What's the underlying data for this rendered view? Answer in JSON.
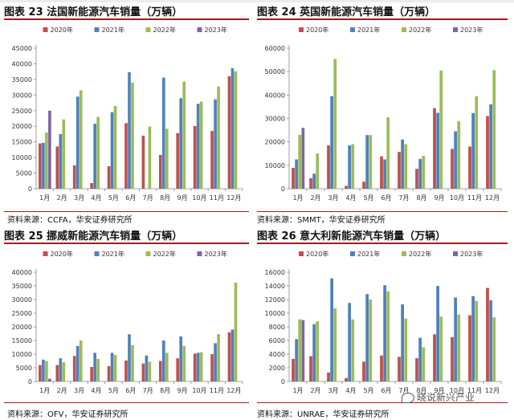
{
  "watermark": "晓说新兴产业",
  "chart_data": [
    {
      "type": "bar",
      "title": "图表 23 法国新能源汽车销量（万辆）",
      "source": "资料来源：CCFA，华安证券研究所",
      "categories": [
        "1月",
        "2月",
        "3月",
        "4月",
        "5月",
        "6月",
        "7月",
        "8月",
        "9月",
        "10月",
        "11月",
        "12月"
      ],
      "ylim": [
        0,
        45000
      ],
      "yticks": [
        0,
        5000,
        10000,
        15000,
        20000,
        25000,
        30000,
        35000,
        40000,
        45000
      ],
      "series": [
        {
          "name": "2020年",
          "color": "#c0504d",
          "values": [
            14500,
            13500,
            7500,
            1800,
            7200,
            21000,
            17000,
            10800,
            17800,
            20100,
            18500,
            36000
          ]
        },
        {
          "name": "2021年",
          "color": "#4f81bd",
          "values": [
            14700,
            17500,
            29500,
            20800,
            24500,
            37300,
            null,
            35600,
            29000,
            27200,
            28600,
            38600
          ]
        },
        {
          "name": "2022年",
          "color": "#9bbb59",
          "values": [
            18000,
            22200,
            31500,
            23000,
            26500,
            34000,
            19900,
            19200,
            34300,
            27900,
            32700,
            37600
          ]
        },
        {
          "name": "2023年",
          "color": "#8064a2",
          "values": [
            25000,
            null,
            null,
            null,
            null,
            null,
            null,
            null,
            null,
            null,
            null,
            null
          ]
        }
      ]
    },
    {
      "type": "bar",
      "title": "图表 24 英国新能源汽车销量（万辆）",
      "source": "资料来源：SMMT，华安证券研究所",
      "categories": [
        "1月",
        "2月",
        "3月",
        "4月",
        "5月",
        "6月",
        "7月",
        "8月",
        "9月",
        "10月",
        "11月",
        "12月"
      ],
      "ylim": [
        0,
        60000
      ],
      "yticks": [
        0,
        10000,
        20000,
        30000,
        40000,
        50000,
        60000
      ],
      "series": [
        {
          "name": "2020年",
          "color": "#c0504d",
          "values": [
            8900,
            4500,
            18500,
            1200,
            3000,
            13800,
            15700,
            8500,
            34400,
            17000,
            18000,
            31000
          ]
        },
        {
          "name": "2021年",
          "color": "#4f81bd",
          "values": [
            12500,
            6400,
            39500,
            18500,
            22900,
            12500,
            21000,
            12700,
            32400,
            24500,
            32300,
            36000
          ]
        },
        {
          "name": "2022年",
          "color": "#9bbb59",
          "values": [
            23000,
            15000,
            55400,
            19000,
            22900,
            30500,
            19000,
            14000,
            50500,
            28800,
            39500,
            50600
          ]
        },
        {
          "name": "2023年",
          "color": "#8064a2",
          "values": [
            26000,
            null,
            null,
            null,
            null,
            null,
            null,
            null,
            null,
            null,
            null,
            null
          ]
        }
      ]
    },
    {
      "type": "bar",
      "title": "图表 25 挪威新能源汽车销量（万辆）",
      "source": "资料来源：OFV，华安证券研究所",
      "categories": [
        "1月",
        "2月",
        "3月",
        "4月",
        "5月",
        "6月",
        "7月",
        "8月",
        "9月",
        "10月",
        "11月",
        "12月"
      ],
      "ylim": [
        0,
        40000
      ],
      "yticks": [
        0,
        5000,
        10000,
        15000,
        20000,
        25000,
        30000,
        35000,
        40000
      ],
      "series": [
        {
          "name": "2020年",
          "color": "#c0504d",
          "values": [
            6000,
            6000,
            9300,
            5300,
            5600,
            7700,
            6600,
            7500,
            8500,
            10200,
            10000,
            18000
          ]
        },
        {
          "name": "2021年",
          "color": "#4f81bd",
          "values": [
            8000,
            8500,
            13000,
            10500,
            10500,
            17300,
            9500,
            15000,
            16500,
            10500,
            14000,
            19000
          ]
        },
        {
          "name": "2022年",
          "color": "#9bbb59",
          "values": [
            7500,
            7000,
            15000,
            8300,
            9700,
            13300,
            7200,
            10500,
            13000,
            10700,
            17300,
            36200
          ]
        },
        {
          "name": "2023年",
          "color": "#8064a2",
          "values": [
            1000,
            null,
            null,
            null,
            null,
            null,
            null,
            null,
            null,
            null,
            null,
            null
          ]
        }
      ]
    },
    {
      "type": "bar",
      "title": "图表 26 意大利新能源汽车销量（万辆）",
      "source": "资料来源：UNRAE，华安证券研究所",
      "categories": [
        "1月",
        "2月",
        "3月",
        "4月",
        "5月",
        "6月",
        "7月",
        "8月",
        "9月",
        "10月",
        "11月",
        "12月"
      ],
      "ylim": [
        0,
        16000
      ],
      "yticks": [
        0,
        2000,
        4000,
        6000,
        8000,
        10000,
        12000,
        14000,
        16000
      ],
      "series": [
        {
          "name": "2020年",
          "color": "#c0504d",
          "values": [
            3300,
            3700,
            1300,
            500,
            2900,
            3800,
            3600,
            3400,
            6900,
            6500,
            9700,
            13700
          ]
        },
        {
          "name": "2021年",
          "color": "#4f81bd",
          "values": [
            6200,
            8400,
            15100,
            11500,
            12800,
            14100,
            11300,
            6400,
            14000,
            12300,
            12500,
            11900
          ]
        },
        {
          "name": "2022年",
          "color": "#9bbb59",
          "values": [
            9100,
            8800,
            10700,
            9100,
            12000,
            13200,
            9200,
            5000,
            9500,
            9800,
            11800,
            9400
          ]
        },
        {
          "name": "2023年",
          "color": "#8064a2",
          "values": [
            9000,
            null,
            null,
            null,
            null,
            null,
            null,
            null,
            null,
            null,
            null,
            null
          ]
        }
      ]
    }
  ]
}
